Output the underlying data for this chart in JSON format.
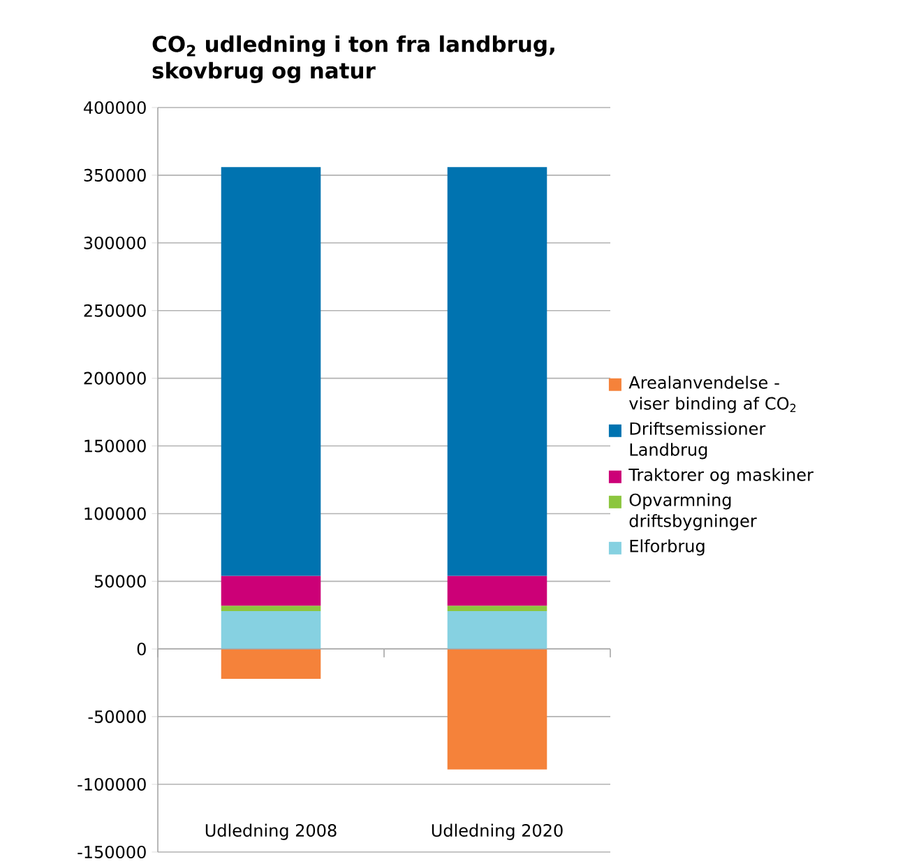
{
  "chart_data": {
    "type": "bar",
    "stacked": true,
    "title": "CO$_{2}$ udledning i ton fra landbrug, skovbrug og natur",
    "categories": [
      "Udledning 2008",
      "Udledning 2020"
    ],
    "series": [
      {
        "name": "Elforbrug",
        "color": "#86d1e1",
        "values": [
          28000,
          28000
        ]
      },
      {
        "name": "Opvarmning driftsbygninger",
        "color": "#8cc63f",
        "values": [
          4000,
          4000
        ]
      },
      {
        "name": "Traktorer og maskiner",
        "color": "#cc0077",
        "values": [
          22000,
          22000
        ]
      },
      {
        "name": "Driftsemissioner Landbrug",
        "color": "#0073b0",
        "values": [
          302000,
          302000
        ]
      },
      {
        "name": "Arealanvendelse - viser binding af CO$_{2}$",
        "color": "#f5823a",
        "values": [
          -22000,
          -89000
        ]
      }
    ],
    "ylim": [
      -150000,
      400000
    ],
    "yticks": [
      -150000,
      -100000,
      -50000,
      0,
      50000,
      100000,
      150000,
      200000,
      250000,
      300000,
      350000,
      400000
    ],
    "grid": "y",
    "legend": "right"
  }
}
